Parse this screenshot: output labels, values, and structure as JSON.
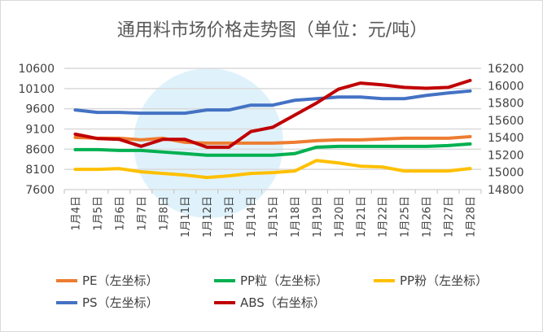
{
  "chart_data": {
    "type": "line",
    "title": "通用料市场价格走势图（单位：元/吨）",
    "categories": [
      "1月4日",
      "1月5日",
      "1月6日",
      "1月7日",
      "1月8日",
      "1月11日",
      "1月12日",
      "1月13日",
      "1月14日",
      "1月15日",
      "1月18日",
      "1月19日",
      "1月20日",
      "1月21日",
      "1月22日",
      "1月25日",
      "1月26日",
      "1月27日",
      "1月28日"
    ],
    "left_axis": {
      "ylim": [
        7600,
        10600
      ],
      "ticks": [
        7600,
        8100,
        8600,
        9100,
        9600,
        10100,
        10600
      ]
    },
    "right_axis": {
      "ylim": [
        14800,
        16200
      ],
      "ticks": [
        14800,
        15000,
        15200,
        15400,
        15600,
        15800,
        16000,
        16200
      ]
    },
    "grid": true,
    "legend": "bottom",
    "series": [
      {
        "name": "PE（左坐标）",
        "axis": "left",
        "color": "#ED7D31",
        "values": [
          8890,
          8870,
          8870,
          8830,
          8870,
          8770,
          8750,
          8750,
          8750,
          8750,
          8770,
          8810,
          8830,
          8830,
          8850,
          8870,
          8870,
          8870,
          8910
        ]
      },
      {
        "name": "PP粒（左坐标）",
        "axis": "left",
        "color": "#00B050",
        "values": [
          8590,
          8590,
          8570,
          8570,
          8530,
          8490,
          8450,
          8450,
          8450,
          8450,
          8490,
          8650,
          8670,
          8670,
          8670,
          8670,
          8670,
          8690,
          8730
        ]
      },
      {
        "name": "PP粉（左坐标）",
        "axis": "left",
        "color": "#FFC000",
        "values": [
          8100,
          8100,
          8120,
          8040,
          8000,
          7960,
          7900,
          7940,
          8000,
          8020,
          8060,
          8320,
          8260,
          8180,
          8160,
          8060,
          8060,
          8060,
          8120
        ]
      },
      {
        "name": "PS（左坐标）",
        "axis": "left",
        "color": "#4472C4",
        "values": [
          9570,
          9510,
          9510,
          9490,
          9490,
          9490,
          9570,
          9570,
          9690,
          9690,
          9810,
          9850,
          9890,
          9890,
          9850,
          9850,
          9930,
          9990,
          10040
        ]
      },
      {
        "name": "ABS（右坐标）",
        "axis": "right",
        "color": "#C00000",
        "values": [
          15440,
          15390,
          15380,
          15300,
          15380,
          15380,
          15290,
          15290,
          15470,
          15520,
          15660,
          15800,
          15960,
          16030,
          16010,
          15980,
          15970,
          15980,
          16060
        ]
      }
    ]
  }
}
